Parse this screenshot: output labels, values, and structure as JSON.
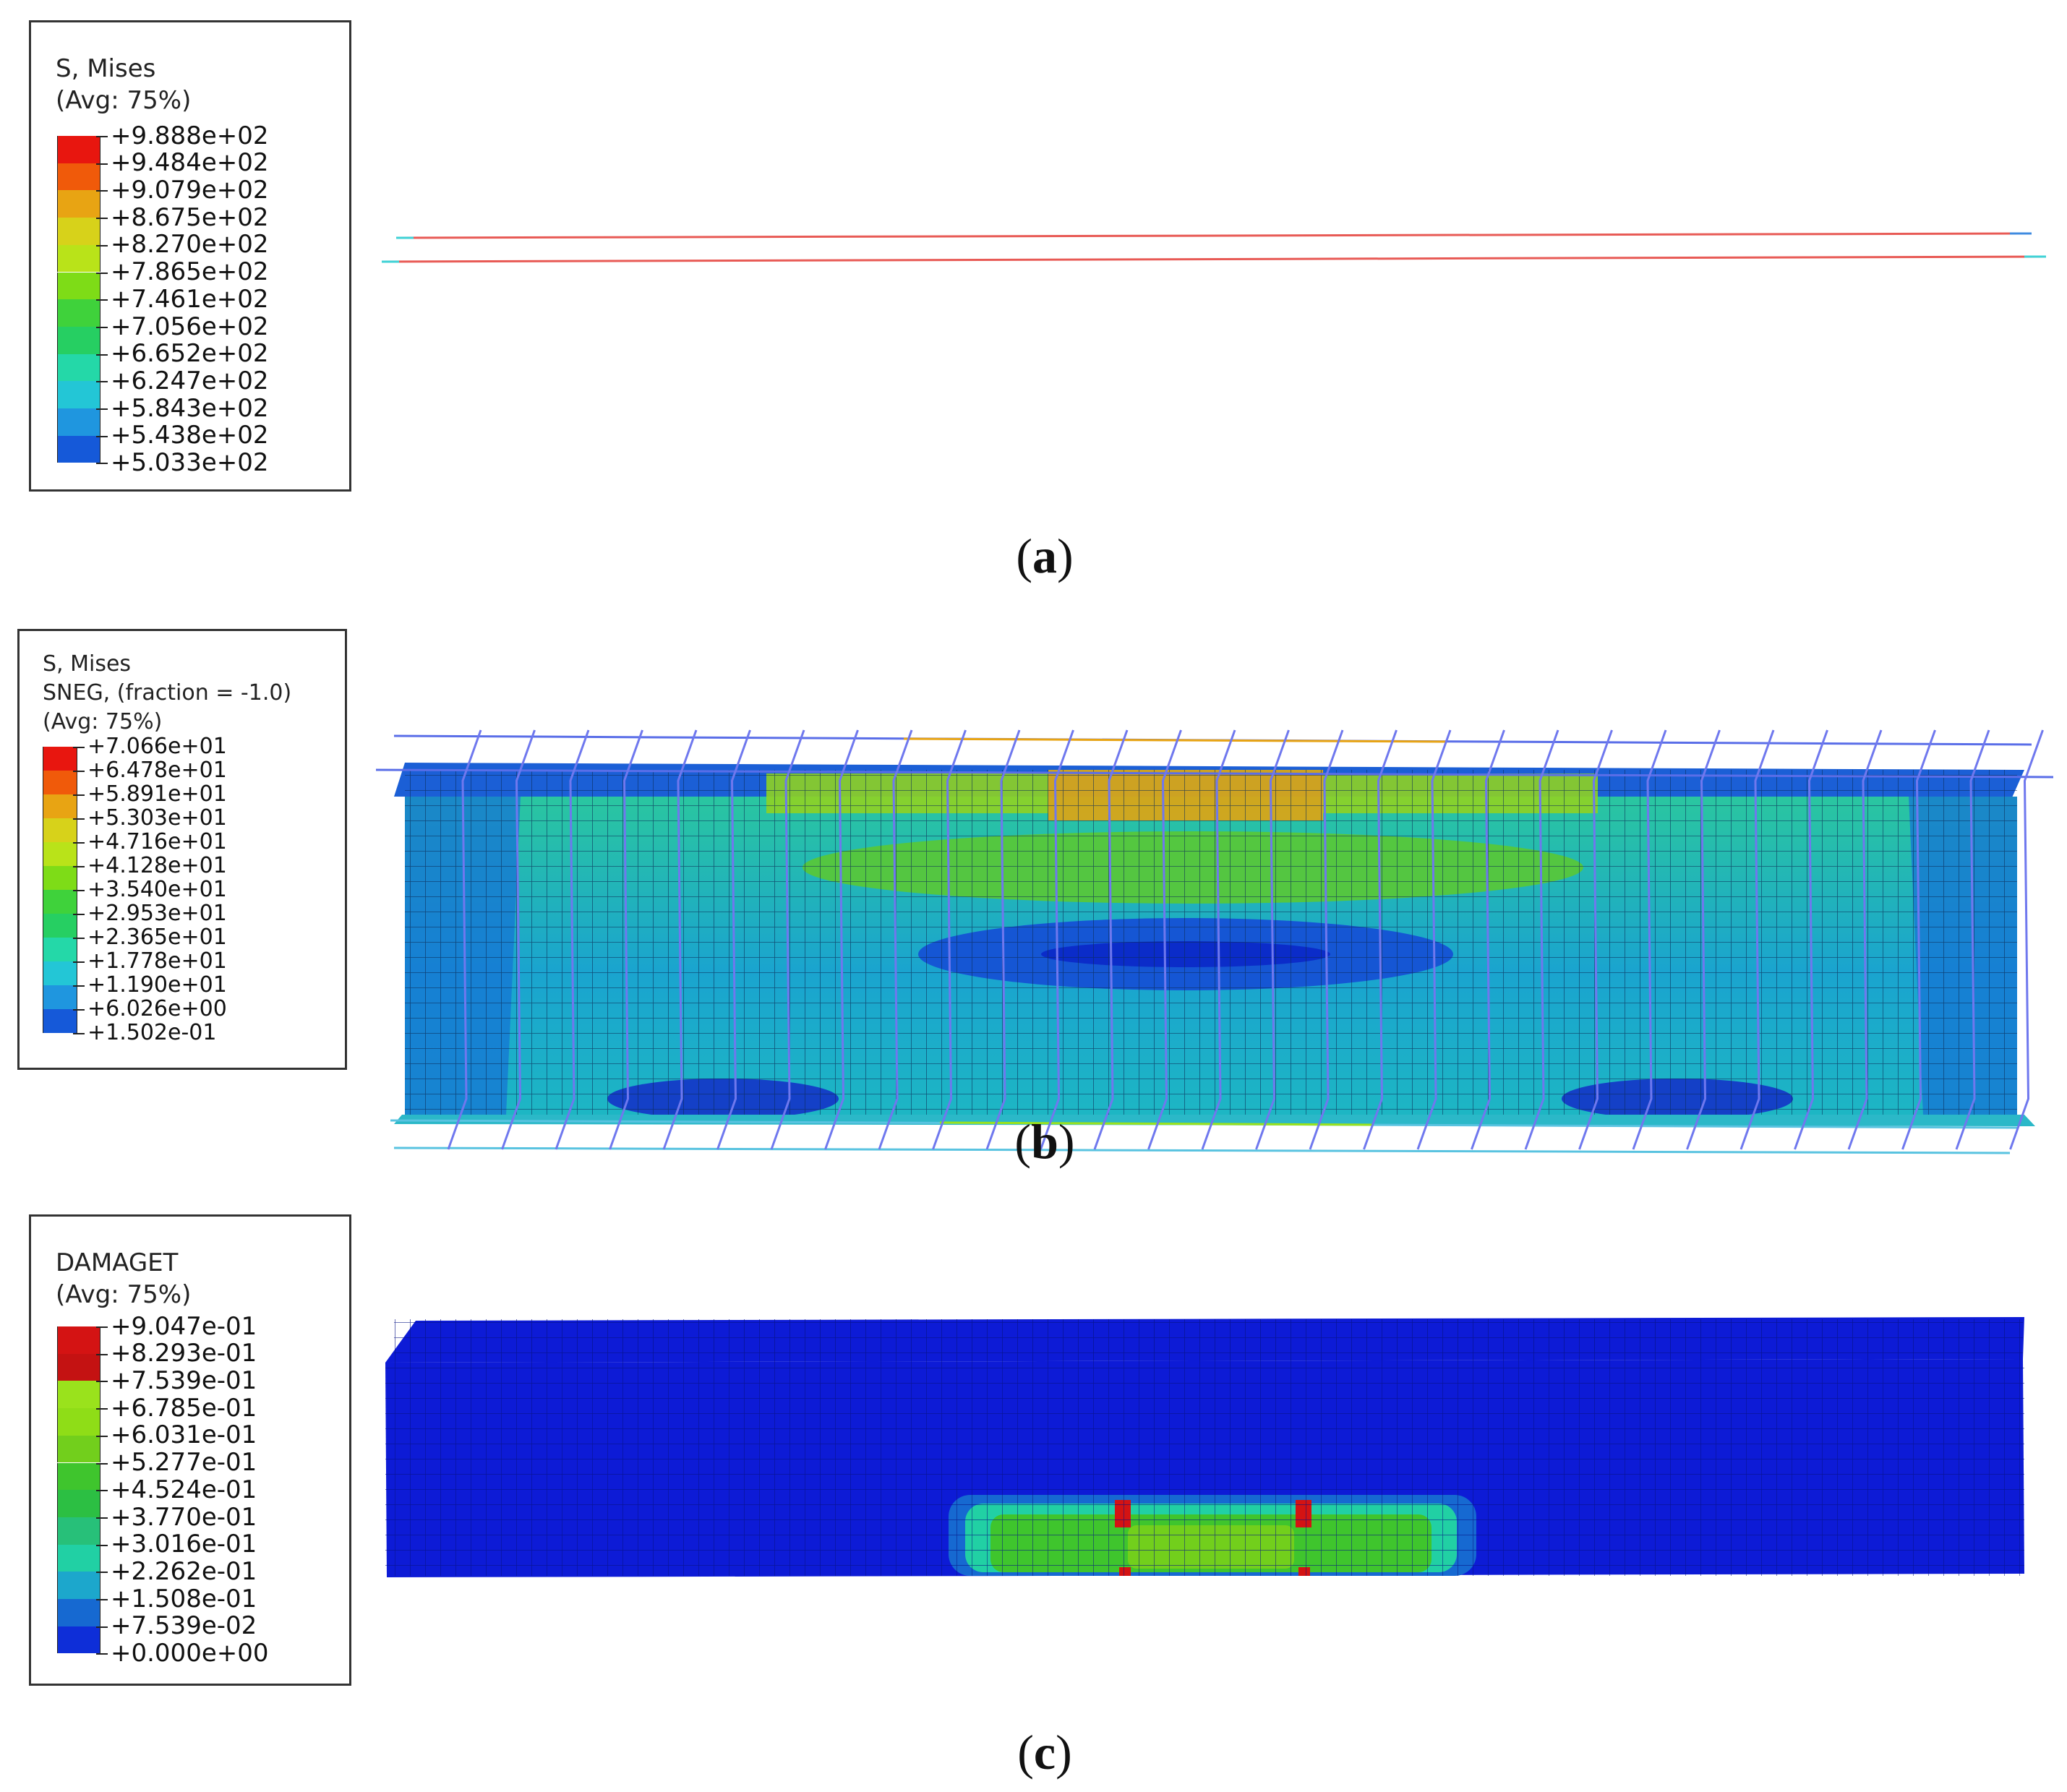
{
  "panels": [
    {
      "id": "a",
      "caption_letter": "a",
      "legend": {
        "title_lines": [
          "S, Mises",
          "(Avg: 75%)"
        ],
        "values": [
          "+9.888e+02",
          "+9.484e+02",
          "+9.079e+02",
          "+8.675e+02",
          "+8.270e+02",
          "+7.865e+02",
          "+7.461e+02",
          "+7.056e+02",
          "+6.652e+02",
          "+6.247e+02",
          "+5.843e+02",
          "+5.438e+02",
          "+5.033e+02"
        ]
      }
    },
    {
      "id": "b",
      "caption_letter": "b",
      "legend": {
        "title_lines": [
          "S, Mises",
          "SNEG, (fraction = -1.0)",
          "(Avg: 75%)"
        ],
        "values": [
          "+7.066e+01",
          "+6.478e+01",
          "+5.891e+01",
          "+5.303e+01",
          "+4.716e+01",
          "+4.128e+01",
          "+3.540e+01",
          "+2.953e+01",
          "+2.365e+01",
          "+1.778e+01",
          "+1.190e+01",
          "+6.026e+00",
          "+1.502e-01"
        ]
      }
    },
    {
      "id": "c",
      "caption_letter": "c",
      "legend": {
        "title_lines": [
          "DAMAGET",
          "(Avg: 75%)"
        ],
        "values": [
          "+9.047e-01",
          "+8.293e-01",
          "+7.539e-01",
          "+6.785e-01",
          "+6.031e-01",
          "+5.277e-01",
          "+4.524e-01",
          "+3.770e-01",
          "+3.016e-01",
          "+2.262e-01",
          "+1.508e-01",
          "+7.539e-02",
          "+0.000e+00"
        ]
      }
    }
  ],
  "colors": {
    "contour_12": [
      "#e8160f",
      "#f05a0a",
      "#e8a413",
      "#d7d21a",
      "#b9e319",
      "#7edc17",
      "#3fd23b",
      "#26cf62",
      "#24d8a8",
      "#23c6d6",
      "#1f96df",
      "#1559d9",
      "#0a1fe0"
    ],
    "damage_12": [
      "#d41313",
      "#c41212",
      "#9ae21c",
      "#8fdd17",
      "#72cf1c",
      "#3fc52d",
      "#2cbf43",
      "#27c079",
      "#21d0a4",
      "#1ca7cc",
      "#1669d1",
      "#0e2ed8",
      "#0d1bd6"
    ],
    "beam_blue": "#0a1ed8",
    "stirrup": "#6f78ee",
    "rebar_red": "#e85a55"
  }
}
